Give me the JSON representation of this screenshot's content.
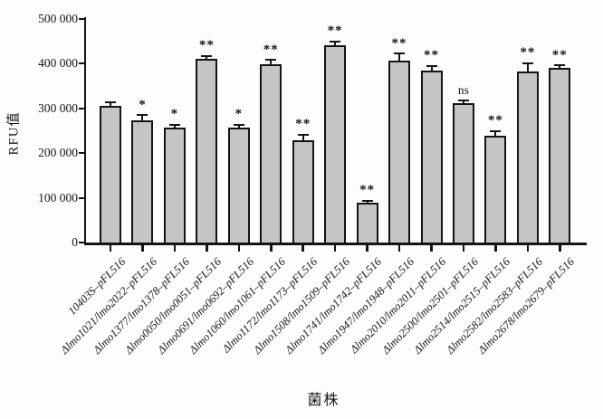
{
  "chart_data": {
    "type": "bar",
    "title": "",
    "xlabel": "菌株",
    "ylabel": "RFU值",
    "ylim": [
      0,
      500000
    ],
    "ytick_values": [
      0,
      100000,
      200000,
      300000,
      400000,
      500000
    ],
    "ytick_labels": [
      "0",
      "100 000",
      "200 000",
      "300 000",
      "400 000",
      "500 000"
    ],
    "grid": false,
    "legend": "none",
    "bar_color": "#c5c5c5",
    "bar_border_color": "#141414",
    "categories": [
      "10403S–pFL516",
      "Δlmo1021/lmo2022–pFL516",
      "Δlmo1377/lmo1378–pFL516",
      "Δlmo0050/lmo0051–pFL516",
      "Δlmo0691/lmo0692–pFL516",
      "Δlmo1060/lmo1061–pFL516",
      "Δlmo1172/lmo1173–pFL516",
      "Δlmo1508/lmo1509–pFL516",
      "Δlmo1741/lmo1742–pFL516",
      "Δlmo1947/lmo1948–pFL516",
      "Δlmo2010/lmo2011–pFL516",
      "Δlmo2500/lmo2501–pFL516",
      "Δlmo2514/lmo2515–pFL516",
      "Δlmo2582/lmo2583–pFL516",
      "Δlmo2678/lmo2679–pFL516"
    ],
    "values": [
      306000,
      273000,
      257000,
      410000,
      257000,
      398000,
      229000,
      442000,
      89000,
      406000,
      385000,
      311000,
      239000,
      383000,
      391000
    ],
    "errors": [
      6000,
      11000,
      6000,
      6000,
      6000,
      9000,
      11000,
      7000,
      4000,
      16000,
      9000,
      5000,
      9000,
      17000,
      4000
    ],
    "significance": [
      "",
      "*",
      "*",
      "**",
      "*",
      "**",
      "**",
      "**",
      "**",
      "**",
      "**",
      "ns",
      "**",
      "**",
      "**"
    ]
  }
}
